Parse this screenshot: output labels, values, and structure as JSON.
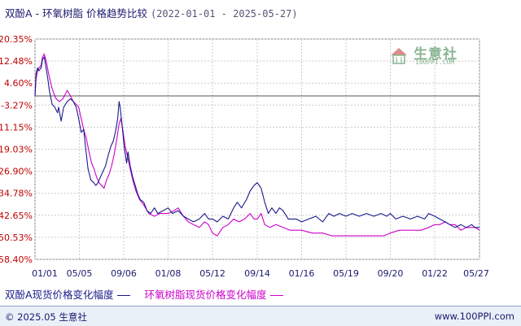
{
  "header": {
    "title": "双酚A - 环氧树脂 价格趋势比较",
    "date_range": "(2022-01-01 - 2025-05-27)"
  },
  "watermark": {
    "text": "生意社",
    "url": "100PPI.COM"
  },
  "legend": {
    "series1": "双酚A现货价格变化幅度",
    "series2": "环氧树脂现货价格变化幅度"
  },
  "footer": {
    "copyright": "© 2025.05 生意社",
    "site": "www.100PPI.com"
  },
  "colors": {
    "series1": "#1a1a8a",
    "series2": "#cc00cc",
    "zero_line": "#555555",
    "grid": "#cccccc",
    "tick_y": "#c00000",
    "tick_x": "#1a1a6e"
  },
  "chart_data": {
    "type": "line",
    "title": "双酚A - 环氧树脂 价格趋势比较",
    "xlabel": "",
    "ylabel": "",
    "ylim": [
      -58.4,
      20.35
    ],
    "y_ticks": [
      "20.35%",
      "12.48%",
      "4.60%",
      "-3.27%",
      "-11.15%",
      "-19.03%",
      "-26.90%",
      "-34.78%",
      "-42.65%",
      "-50.53%",
      "-58.40%"
    ],
    "y_tick_values": [
      20.35,
      12.48,
      4.6,
      -3.27,
      -11.15,
      -19.03,
      -26.9,
      -34.78,
      -42.65,
      -50.53,
      -58.4
    ],
    "x_ticks": [
      "01/01",
      "05/05",
      "09/06",
      "01/08",
      "05/12",
      "09/14",
      "01/16",
      "05/19",
      "09/20",
      "01/22",
      "05/27"
    ],
    "x_tick_dates": [
      "2022-01-01",
      "2022-05-05",
      "2022-09-06",
      "2023-01-08",
      "2023-05-12",
      "2023-09-14",
      "2024-01-16",
      "2024-05-19",
      "2024-09-20",
      "2025-01-22",
      "2025-05-27"
    ],
    "zero_line": 0,
    "grid": true,
    "legend_position": "bottom",
    "series": [
      {
        "name": "双酚A现货价格变化幅度",
        "color": "#1a1a8a",
        "points": [
          [
            "2022-01-01",
            0
          ],
          [
            "2022-01-04",
            8
          ],
          [
            "2022-01-08",
            10
          ],
          [
            "2022-01-12",
            9
          ],
          [
            "2022-01-18",
            10
          ],
          [
            "2022-01-22",
            13
          ],
          [
            "2022-01-27",
            14
          ],
          [
            "2022-02-01",
            10
          ],
          [
            "2022-02-06",
            6
          ],
          [
            "2022-02-10",
            2
          ],
          [
            "2022-02-18",
            -3
          ],
          [
            "2022-02-25",
            -4
          ],
          [
            "2022-03-05",
            -6
          ],
          [
            "2022-03-08",
            -4
          ],
          [
            "2022-03-15",
            -9
          ],
          [
            "2022-03-22",
            -4
          ],
          [
            "2022-04-01",
            -2
          ],
          [
            "2022-04-10",
            -1
          ],
          [
            "2022-04-18",
            -2
          ],
          [
            "2022-04-26",
            -4
          ],
          [
            "2022-05-03",
            -8
          ],
          [
            "2022-05-10",
            -13
          ],
          [
            "2022-05-17",
            -12
          ],
          [
            "2022-05-22",
            -18
          ],
          [
            "2022-05-29",
            -26
          ],
          [
            "2022-06-06",
            -30
          ],
          [
            "2022-06-14",
            -31
          ],
          [
            "2022-06-20",
            -32
          ],
          [
            "2022-06-26",
            -31
          ],
          [
            "2022-07-03",
            -29
          ],
          [
            "2022-07-10",
            -27
          ],
          [
            "2022-07-17",
            -25
          ],
          [
            "2022-07-25",
            -21
          ],
          [
            "2022-08-01",
            -18
          ],
          [
            "2022-08-08",
            -16
          ],
          [
            "2022-08-15",
            -12
          ],
          [
            "2022-08-20",
            -8
          ],
          [
            "2022-08-24",
            -2
          ],
          [
            "2022-08-27",
            -4
          ],
          [
            "2022-09-01",
            -10
          ],
          [
            "2022-09-07",
            -18
          ],
          [
            "2022-09-14",
            -24
          ],
          [
            "2022-09-18",
            -20
          ],
          [
            "2022-09-24",
            -25
          ],
          [
            "2022-10-01",
            -29
          ],
          [
            "2022-10-08",
            -32
          ],
          [
            "2022-10-15",
            -35
          ],
          [
            "2022-10-22",
            -37
          ],
          [
            "2022-11-01",
            -38
          ],
          [
            "2022-11-10",
            -41
          ],
          [
            "2022-11-20",
            -42
          ],
          [
            "2022-12-01",
            -40
          ],
          [
            "2022-12-10",
            -42
          ],
          [
            "2022-12-25",
            -41
          ],
          [
            "2023-01-08",
            -40
          ],
          [
            "2023-01-20",
            -42
          ],
          [
            "2023-02-05",
            -41
          ],
          [
            "2023-02-20",
            -43
          ],
          [
            "2023-03-05",
            -44
          ],
          [
            "2023-03-20",
            -45
          ],
          [
            "2023-04-05",
            -44
          ],
          [
            "2023-04-20",
            -42
          ],
          [
            "2023-05-01",
            -44
          ],
          [
            "2023-05-12",
            -44
          ],
          [
            "2023-05-25",
            -45
          ],
          [
            "2023-06-10",
            -43
          ],
          [
            "2023-06-25",
            -44
          ],
          [
            "2023-07-10",
            -40
          ],
          [
            "2023-07-20",
            -38
          ],
          [
            "2023-08-01",
            -40
          ],
          [
            "2023-08-15",
            -37
          ],
          [
            "2023-08-25",
            -34
          ],
          [
            "2023-09-05",
            -32
          ],
          [
            "2023-09-14",
            -31
          ],
          [
            "2023-09-25",
            -33
          ],
          [
            "2023-10-05",
            -38
          ],
          [
            "2023-10-15",
            -42
          ],
          [
            "2023-10-25",
            -40
          ],
          [
            "2023-11-05",
            -42
          ],
          [
            "2023-11-15",
            -40
          ],
          [
            "2023-11-25",
            -41
          ],
          [
            "2023-12-10",
            -44
          ],
          [
            "2024-01-01",
            -44
          ],
          [
            "2024-01-16",
            -45
          ],
          [
            "2024-02-05",
            -44
          ],
          [
            "2024-02-25",
            -43
          ],
          [
            "2024-03-15",
            -45
          ],
          [
            "2024-04-01",
            -42
          ],
          [
            "2024-04-15",
            -43
          ],
          [
            "2024-05-01",
            -42
          ],
          [
            "2024-05-19",
            -43
          ],
          [
            "2024-06-05",
            -42
          ],
          [
            "2024-06-25",
            -43
          ],
          [
            "2024-07-15",
            -42
          ],
          [
            "2024-08-05",
            -43
          ],
          [
            "2024-08-25",
            -42
          ],
          [
            "2024-09-10",
            -43
          ],
          [
            "2024-09-20",
            -42
          ],
          [
            "2024-10-05",
            -44
          ],
          [
            "2024-10-25",
            -43
          ],
          [
            "2024-11-15",
            -44
          ],
          [
            "2024-12-05",
            -43
          ],
          [
            "2024-12-25",
            -44
          ],
          [
            "2025-01-05",
            -42
          ],
          [
            "2025-01-22",
            -43
          ],
          [
            "2025-02-05",
            -44
          ],
          [
            "2025-02-20",
            -45
          ],
          [
            "2025-03-05",
            -46
          ],
          [
            "2025-03-20",
            -47
          ],
          [
            "2025-04-05",
            -46
          ],
          [
            "2025-04-20",
            -47
          ],
          [
            "2025-05-05",
            -46
          ],
          [
            "2025-05-15",
            -47
          ],
          [
            "2025-05-27",
            -47
          ]
        ]
      },
      {
        "name": "环氧树脂现货价格变化幅度",
        "color": "#cc00cc",
        "points": [
          [
            "2022-01-01",
            0
          ],
          [
            "2022-01-04",
            6
          ],
          [
            "2022-01-08",
            9
          ],
          [
            "2022-01-12",
            10
          ],
          [
            "2022-01-18",
            11
          ],
          [
            "2022-01-22",
            14
          ],
          [
            "2022-01-27",
            15
          ],
          [
            "2022-02-02",
            12
          ],
          [
            "2022-02-08",
            8
          ],
          [
            "2022-02-15",
            4
          ],
          [
            "2022-02-22",
            1
          ],
          [
            "2022-03-01",
            -1
          ],
          [
            "2022-03-10",
            -2
          ],
          [
            "2022-03-20",
            -1
          ],
          [
            "2022-04-01",
            2
          ],
          [
            "2022-04-10",
            0
          ],
          [
            "2022-04-18",
            -2
          ],
          [
            "2022-04-26",
            -3
          ],
          [
            "2022-05-03",
            -4
          ],
          [
            "2022-05-10",
            -8
          ],
          [
            "2022-05-17",
            -12
          ],
          [
            "2022-05-24",
            -15
          ],
          [
            "2022-06-01",
            -20
          ],
          [
            "2022-06-08",
            -24
          ],
          [
            "2022-06-15",
            -26
          ],
          [
            "2022-06-22",
            -29
          ],
          [
            "2022-06-29",
            -31
          ],
          [
            "2022-07-06",
            -32
          ],
          [
            "2022-07-13",
            -33
          ],
          [
            "2022-07-20",
            -30
          ],
          [
            "2022-07-27",
            -28
          ],
          [
            "2022-08-03",
            -25
          ],
          [
            "2022-08-10",
            -21
          ],
          [
            "2022-08-17",
            -16
          ],
          [
            "2022-08-24",
            -10
          ],
          [
            "2022-08-29",
            -8
          ],
          [
            "2022-09-03",
            -12
          ],
          [
            "2022-09-10",
            -18
          ],
          [
            "2022-09-17",
            -22
          ],
          [
            "2022-09-24",
            -26
          ],
          [
            "2022-10-01",
            -30
          ],
          [
            "2022-10-10",
            -34
          ],
          [
            "2022-10-20",
            -37
          ],
          [
            "2022-11-01",
            -39
          ],
          [
            "2022-11-15",
            -42
          ],
          [
            "2022-12-01",
            -43
          ],
          [
            "2022-12-15",
            -42
          ],
          [
            "2023-01-08",
            -42
          ],
          [
            "2023-01-25",
            -41
          ],
          [
            "2023-02-05",
            -40
          ],
          [
            "2023-02-20",
            -43
          ],
          [
            "2023-03-05",
            -45
          ],
          [
            "2023-03-20",
            -46
          ],
          [
            "2023-04-05",
            -47
          ],
          [
            "2023-04-20",
            -45
          ],
          [
            "2023-05-01",
            -46
          ],
          [
            "2023-05-12",
            -49
          ],
          [
            "2023-05-25",
            -50
          ],
          [
            "2023-06-10",
            -47
          ],
          [
            "2023-06-25",
            -46
          ],
          [
            "2023-07-10",
            -44
          ],
          [
            "2023-07-25",
            -45
          ],
          [
            "2023-08-10",
            -44
          ],
          [
            "2023-08-25",
            -42
          ],
          [
            "2023-09-05",
            -44
          ],
          [
            "2023-09-14",
            -44
          ],
          [
            "2023-09-25",
            -42
          ],
          [
            "2023-10-05",
            -46
          ],
          [
            "2023-10-20",
            -47
          ],
          [
            "2023-11-05",
            -46
          ],
          [
            "2023-11-25",
            -47
          ],
          [
            "2023-12-15",
            -48
          ],
          [
            "2024-01-01",
            -48
          ],
          [
            "2024-01-16",
            -48
          ],
          [
            "2024-02-15",
            -49
          ],
          [
            "2024-03-15",
            -49
          ],
          [
            "2024-04-10",
            -50
          ],
          [
            "2024-05-01",
            -50
          ],
          [
            "2024-05-19",
            -50
          ],
          [
            "2024-06-15",
            -50
          ],
          [
            "2024-07-15",
            -50
          ],
          [
            "2024-08-15",
            -50
          ],
          [
            "2024-09-01",
            -50
          ],
          [
            "2024-09-20",
            -49
          ],
          [
            "2024-10-15",
            -48
          ],
          [
            "2024-11-15",
            -48
          ],
          [
            "2024-12-15",
            -48
          ],
          [
            "2025-01-05",
            -47
          ],
          [
            "2025-01-22",
            -46
          ],
          [
            "2025-02-05",
            -46
          ],
          [
            "2025-02-20",
            -45
          ],
          [
            "2025-03-05",
            -46
          ],
          [
            "2025-03-20",
            -46
          ],
          [
            "2025-04-05",
            -48
          ],
          [
            "2025-04-20",
            -47
          ],
          [
            "2025-05-05",
            -47
          ],
          [
            "2025-05-15",
            -47
          ],
          [
            "2025-05-27",
            -48
          ]
        ]
      }
    ]
  }
}
